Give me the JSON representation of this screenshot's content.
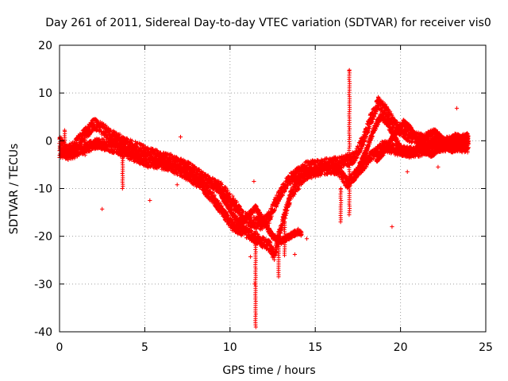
{
  "chart_data": {
    "type": "scatter",
    "title": "Day 261 of 2011, Sidereal Day-to-day VTEC variation (SDTVAR) for receiver vis0",
    "xlabel": "GPS time / hours",
    "ylabel": "SDTVAR / TECUs",
    "xlim": [
      0,
      25
    ],
    "ylim": [
      -40,
      20
    ],
    "xticks": [
      "0",
      "5",
      "10",
      "15",
      "20",
      "25"
    ],
    "yticks": [
      "-40",
      "-30",
      "-20",
      "-10",
      "0",
      "10",
      "20"
    ],
    "grid": true,
    "marker": "+",
    "colors": {
      "series": "#ff0000",
      "axes": "#000000",
      "grid": "#a0a0a0"
    },
    "band_series": [
      {
        "name": "band-upper-1",
        "points": [
          [
            0,
            0
          ],
          [
            0.4,
            -2.2
          ],
          [
            0.8,
            -1.5
          ],
          [
            1.2,
            0.3
          ],
          [
            1.8,
            2.5
          ],
          [
            2.0,
            3.5
          ],
          [
            2.5,
            2.5
          ],
          [
            3.0,
            1.2
          ],
          [
            3.6,
            0
          ],
          [
            4.5,
            -1.5
          ],
          [
            5.5,
            -3
          ],
          [
            6.5,
            -4
          ],
          [
            7.5,
            -5.5
          ],
          [
            8.5,
            -8
          ],
          [
            9.5,
            -10
          ],
          [
            10.2,
            -13
          ],
          [
            10.8,
            -16
          ],
          [
            11.3,
            -17
          ],
          [
            11.8,
            -17.5
          ],
          [
            12.3,
            -16
          ],
          [
            12.8,
            -12
          ],
          [
            13.5,
            -8
          ],
          [
            14.5,
            -5.5
          ],
          [
            15.5,
            -5
          ],
          [
            16.5,
            -4.5
          ],
          [
            17.3,
            -3.5
          ],
          [
            17.8,
            0
          ],
          [
            18.3,
            5
          ],
          [
            18.7,
            8
          ],
          [
            19.2,
            6
          ],
          [
            19.7,
            3
          ],
          [
            20.5,
            1
          ],
          [
            21.5,
            0
          ],
          [
            22.5,
            -0.5
          ],
          [
            23.5,
            0
          ],
          [
            24,
            0.5
          ]
        ],
        "spread": 2.5
      },
      {
        "name": "band-lower-1",
        "points": [
          [
            0,
            -2.5
          ],
          [
            0.6,
            -3
          ],
          [
            1.5,
            -1.5
          ],
          [
            2.3,
            -0.5
          ],
          [
            3.2,
            -1.5
          ],
          [
            4.2,
            -3
          ],
          [
            5.2,
            -4.5
          ],
          [
            6.2,
            -5
          ],
          [
            7.2,
            -6.5
          ],
          [
            8.2,
            -9
          ],
          [
            9.0,
            -12
          ],
          [
            9.6,
            -15
          ],
          [
            10.2,
            -18
          ],
          [
            10.8,
            -19
          ],
          [
            11.3,
            -20
          ],
          [
            11.8,
            -21
          ],
          [
            12.3,
            -22
          ],
          [
            12.6,
            -24
          ],
          [
            13.0,
            -18
          ],
          [
            13.6,
            -11
          ],
          [
            14.5,
            -7
          ],
          [
            15.5,
            -6
          ],
          [
            16.3,
            -6
          ],
          [
            16.9,
            -9
          ],
          [
            17.5,
            -6.5
          ],
          [
            18.2,
            -3.5
          ],
          [
            19.0,
            -1
          ],
          [
            19.8,
            -2
          ],
          [
            20.8,
            -2.5
          ],
          [
            21.8,
            -1.5
          ],
          [
            23.0,
            -1
          ],
          [
            24,
            -1.5
          ]
        ],
        "spread": 2.2
      },
      {
        "name": "band-wave-1",
        "points": [
          [
            9.2,
            -9
          ],
          [
            9.6,
            -12
          ],
          [
            10.1,
            -15
          ],
          [
            10.6,
            -17.5
          ],
          [
            11.0,
            -16
          ],
          [
            11.5,
            -14
          ],
          [
            12.0,
            -17
          ],
          [
            12.5,
            -20
          ],
          [
            13.0,
            -21
          ],
          [
            13.5,
            -20
          ],
          [
            14.0,
            -19
          ],
          [
            14.2,
            -19.5
          ]
        ],
        "spread": 1.2
      },
      {
        "name": "band-wave-2",
        "points": [
          [
            17.6,
            -5
          ],
          [
            18.0,
            -2
          ],
          [
            18.4,
            2
          ],
          [
            18.8,
            5
          ],
          [
            19.2,
            4
          ],
          [
            19.6,
            1
          ],
          [
            20.0,
            -1.5
          ],
          [
            20.5,
            -3
          ],
          [
            21.0,
            -1.5
          ],
          [
            21.5,
            1
          ],
          [
            22.0,
            2
          ],
          [
            22.5,
            0
          ],
          [
            23.0,
            -2
          ],
          [
            23.5,
            -1
          ],
          [
            24,
            0
          ]
        ],
        "spread": 1.3
      },
      {
        "name": "band-wave-3",
        "points": [
          [
            18.6,
            -4
          ],
          [
            19.0,
            -2.5
          ],
          [
            19.4,
            0
          ],
          [
            19.8,
            2
          ],
          [
            20.2,
            4
          ],
          [
            20.6,
            2.5
          ],
          [
            21.0,
            0
          ],
          [
            21.4,
            -2
          ],
          [
            21.8,
            -3
          ],
          [
            22.2,
            -2
          ],
          [
            22.6,
            -0.5
          ],
          [
            23.2,
            1
          ],
          [
            23.8,
            0.5
          ]
        ],
        "spread": 1.0
      }
    ],
    "vertical_spikes": [
      {
        "x": 17.0,
        "ymin": -15.5,
        "ymax": 14.8
      },
      {
        "x": 11.5,
        "ymin": -39.0,
        "ymax": -19.0
      },
      {
        "x": 12.85,
        "ymin": -28.5,
        "ymax": -19.0
      },
      {
        "x": 3.7,
        "ymin": -10.0,
        "ymax": -2.5
      },
      {
        "x": 1.5,
        "ymin": -3.0,
        "ymax": 2.5
      },
      {
        "x": 0.3,
        "ymin": -3.0,
        "ymax": 2.2
      },
      {
        "x": 13.2,
        "ymin": -24.0,
        "ymax": -17.0
      },
      {
        "x": 16.5,
        "ymin": -17.0,
        "ymax": -10.0
      }
    ],
    "outliers": [
      [
        2.5,
        -14.3
      ],
      [
        5.3,
        -12.5
      ],
      [
        6.9,
        -9.2
      ],
      [
        11.2,
        -24.3
      ],
      [
        11.45,
        -30
      ],
      [
        11.4,
        -8.5
      ],
      [
        14.5,
        -20.5
      ],
      [
        19.5,
        -18
      ],
      [
        23.3,
        6.8
      ],
      [
        7.1,
        0.8
      ],
      [
        13.8,
        -23.8
      ],
      [
        22.2,
        -5.5
      ],
      [
        20.4,
        -6.5
      ],
      [
        15.4,
        -5.0
      ]
    ]
  }
}
